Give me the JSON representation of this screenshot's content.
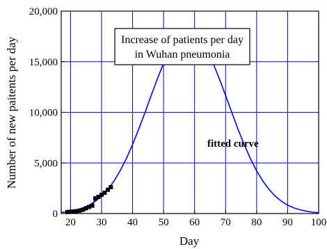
{
  "chart_data": {
    "type": "line",
    "title_lines": [
      "Increase of patients per day",
      "in Wuhan pneumonia"
    ],
    "xlabel": "Day",
    "ylabel": "Number of new paitents per day",
    "xlim": [
      17,
      100
    ],
    "ylim": [
      0,
      20000
    ],
    "x_ticks": [
      20,
      30,
      40,
      50,
      60,
      70,
      80,
      90,
      100
    ],
    "y_ticks": [
      0,
      5000,
      10000,
      15000,
      20000
    ],
    "x_tick_labels": [
      "20",
      "30",
      "40",
      "50",
      "60",
      "70",
      "80",
      "90",
      "100"
    ],
    "y_tick_labels": [
      "0",
      "5,000",
      "10,000",
      "15,000",
      "20,000"
    ],
    "grid": true,
    "annotation": "fitted curve",
    "series": [
      {
        "style": "line",
        "color": "#0000ee",
        "x": [
          17,
          20,
          22,
          24,
          26,
          28,
          30,
          32,
          34,
          36,
          38,
          40,
          42,
          44,
          46,
          48,
          50,
          52,
          54,
          56,
          57,
          58,
          59,
          60,
          62,
          64,
          66,
          68,
          70,
          72,
          74,
          76,
          78,
          80,
          82,
          84,
          86,
          88,
          90,
          92,
          94,
          96,
          98,
          100
        ],
        "y": [
          110,
          230,
          370,
          560,
          830,
          1210,
          1720,
          2380,
          3210,
          4230,
          5430,
          6810,
          8340,
          9980,
          11660,
          13310,
          14840,
          16170,
          17220,
          17920,
          18120,
          18180,
          18120,
          17920,
          17220,
          16170,
          14840,
          13310,
          11660,
          9980,
          8340,
          6810,
          5430,
          4230,
          3210,
          2380,
          1720,
          1210,
          830,
          560,
          370,
          230,
          140,
          80
        ]
      },
      {
        "style": "markers",
        "color": "#000000",
        "x": [
          19,
          20,
          21,
          22,
          23,
          24,
          25,
          26,
          27,
          28,
          29,
          30,
          31,
          32,
          33
        ],
        "y": [
          150,
          180,
          200,
          240,
          290,
          380,
          520,
          650,
          780,
          1500,
          1650,
          1850,
          2050,
          2350,
          2600
        ]
      }
    ]
  }
}
